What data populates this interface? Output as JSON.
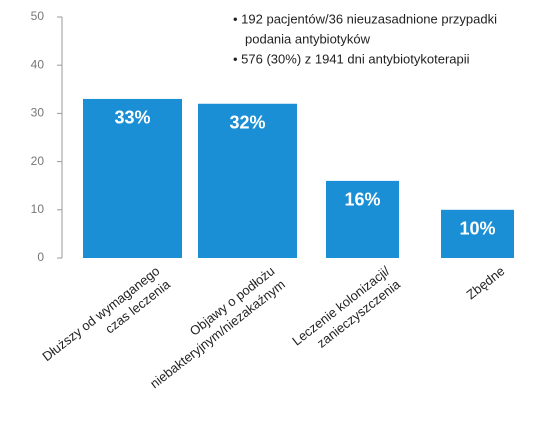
{
  "chart_data": {
    "type": "bar",
    "categories": [
      [
        "Dłuższy od wymaganego",
        "czas leczenia"
      ],
      [
        "Objawy o podłożu",
        "niebakteryjnym/niezakaźnym"
      ],
      [
        "Leczenie kolonizacji/",
        "zanieczyszczenia"
      ],
      [
        "Zbędne"
      ]
    ],
    "values": [
      33,
      32,
      16,
      10
    ],
    "value_labels": [
      "33%",
      "32%",
      "16%",
      "10%"
    ],
    "color": "#1a8fd6",
    "ylim": [
      0,
      50
    ],
    "yticks": [
      0,
      10,
      20,
      30,
      40,
      50
    ],
    "annotations": [
      [
        "• 192 pacjentów/36 nieuzasadnione przypadki",
        "podania antybiotyków"
      ],
      [
        "• 576 (30%) z 1941 dni antybiotykoterapii"
      ]
    ]
  }
}
